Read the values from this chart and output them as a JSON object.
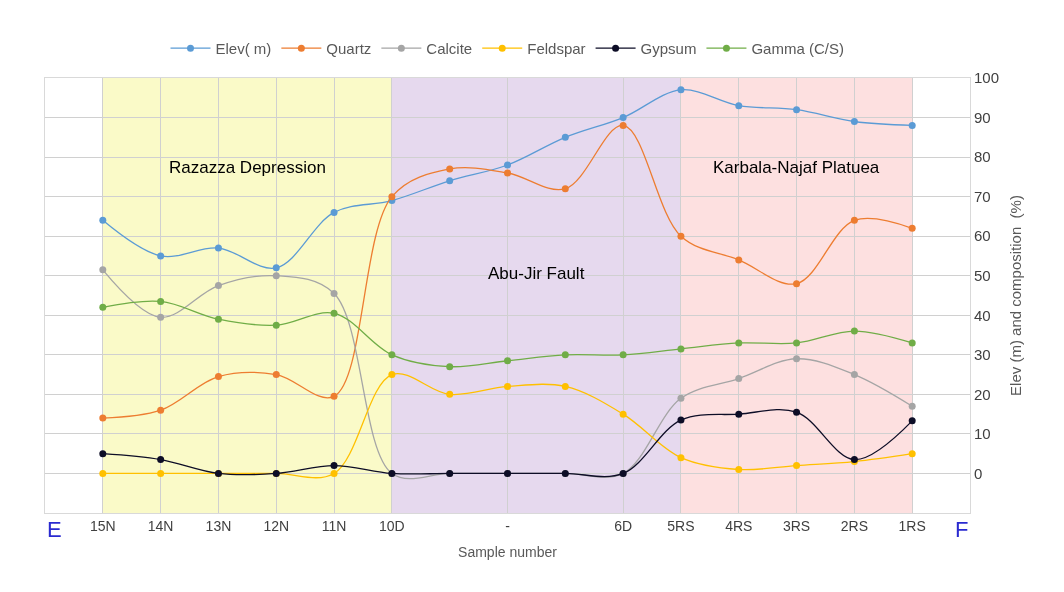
{
  "chart_data": {
    "type": "line",
    "xlabel": "Sample number",
    "ylabel": "Elev (m) and composition  (%)",
    "categories": [
      "15N",
      "14N",
      "13N",
      "12N",
      "11N",
      "10D",
      null,
      "-",
      null,
      "6D",
      "5RS",
      "4RS",
      "3RS",
      "2RS",
      "1RS"
    ],
    "ylim": [
      -10,
      100
    ],
    "yticks": [
      0,
      10,
      20,
      30,
      40,
      50,
      60,
      70,
      80,
      90,
      100
    ],
    "series": [
      {
        "name": "Elev( m)",
        "color": "#5b9bd5",
        "values": [
          64,
          55,
          57,
          52,
          66,
          69,
          74,
          78,
          85,
          90,
          97,
          93,
          92,
          89,
          88
        ]
      },
      {
        "name": "Quartz",
        "color": "#ed7d31",
        "values": [
          14,
          16,
          24.5,
          25,
          19.5,
          70,
          77,
          76,
          72,
          88,
          60,
          54,
          48,
          64,
          62
        ]
      },
      {
        "name": "Calcite",
        "color": "#a5a5a5",
        "values": [
          51.5,
          39.5,
          47.5,
          50,
          45.5,
          0,
          0,
          0,
          0,
          0,
          19,
          24,
          29,
          25,
          17
        ]
      },
      {
        "name": "Feldspar",
        "color": "#ffc000",
        "values": [
          0,
          0,
          0,
          0,
          0,
          25,
          20,
          22,
          22,
          15,
          4,
          1,
          2,
          3,
          5
        ]
      },
      {
        "name": "Gypsum",
        "color": "#0d0d26",
        "values": [
          5,
          3.5,
          0,
          0,
          2,
          0,
          0,
          0,
          0,
          0,
          13.5,
          15,
          15.5,
          3.5,
          13.3
        ]
      },
      {
        "name": "Gamma (C/S)",
        "color": "#70ad47",
        "values": [
          42,
          43.5,
          39,
          37.5,
          40.5,
          30,
          27,
          28.5,
          30,
          30,
          31.5,
          33,
          33,
          36,
          33
        ]
      }
    ],
    "bands": [
      {
        "axis": "x",
        "from": "15N",
        "to": "10D",
        "label": "Razazza Depression",
        "color": "#fafac8"
      },
      {
        "axis": "x",
        "from": "10D",
        "to": "5RS",
        "label": "Abu-Jir Fault",
        "color": "#e6d9ee"
      },
      {
        "axis": "x",
        "from": "5RS",
        "to": "1RS",
        "label": "Karbala-Najaf Platuea",
        "color": "#fde0e0"
      }
    ],
    "annotations": [
      "E",
      "F"
    ],
    "grid": true,
    "legend": "top",
    "marker": "circle",
    "line_style": "solid"
  }
}
